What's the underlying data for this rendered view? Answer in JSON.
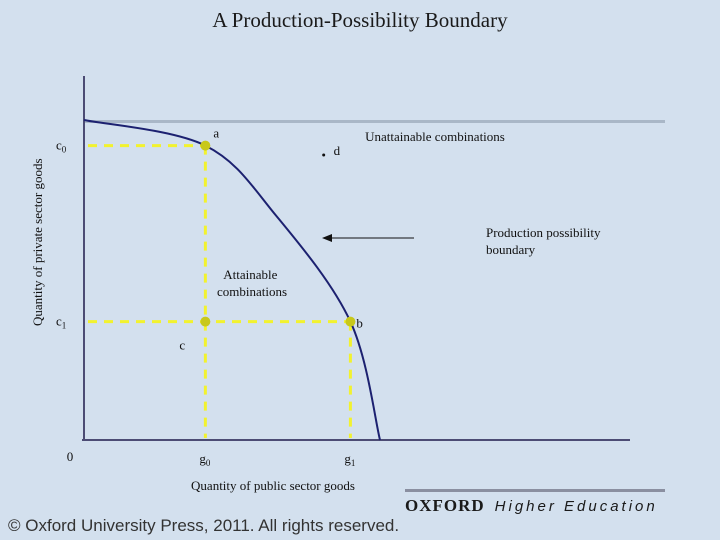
{
  "page": {
    "title": "A Production-Possibility Boundary"
  },
  "footer": {
    "copyright": "© Oxford University Press, 2011. All rights reserved.",
    "brand_oxford": "OXFORD",
    "brand_tagline": "Higher Education"
  },
  "colors": {
    "background": "#d3e0ee",
    "curve": "#1c2170",
    "guides": "#f2f22e",
    "point": "#c8c81a",
    "axis": "#4c4c74"
  },
  "chart_data": {
    "type": "line",
    "title": "A Production-Possibility Boundary",
    "xlabel": "Quantity of public sector goods",
    "ylabel": "Quantity of private sector goods",
    "origin_label": "0",
    "x_ticks": [
      {
        "label": "g0",
        "base": "g",
        "sub": "0",
        "value": 0.41
      },
      {
        "label": "g1",
        "base": "g",
        "sub": "1",
        "value": 0.9
      }
    ],
    "y_ticks": [
      {
        "label": "c0",
        "base": "c",
        "sub": "0",
        "value": 0.92
      },
      {
        "label": "c1",
        "base": "c",
        "sub": "1",
        "value": 0.37
      }
    ],
    "boundary": {
      "name": "Production possibility boundary",
      "x": [
        0,
        0.41,
        0.65,
        0.9,
        1.0
      ],
      "y": [
        1.0,
        0.92,
        0.7,
        0.37,
        0
      ]
    },
    "points": [
      {
        "label": "a",
        "x": 0.41,
        "y": 0.92,
        "marker": true
      },
      {
        "label": "b",
        "x": 0.9,
        "y": 0.37,
        "marker": true
      },
      {
        "label": "c",
        "x": 0.41,
        "y": 0.37,
        "marker": true
      },
      {
        "label": "d",
        "x": 0.83,
        "y": 0.9,
        "marker": false
      }
    ],
    "annotations": [
      {
        "text": "Unattainable combinations"
      },
      {
        "text": "Production possibility boundary",
        "arrow": true
      },
      {
        "text": "Attainable combinations"
      }
    ],
    "grid": false,
    "legend": "none"
  }
}
